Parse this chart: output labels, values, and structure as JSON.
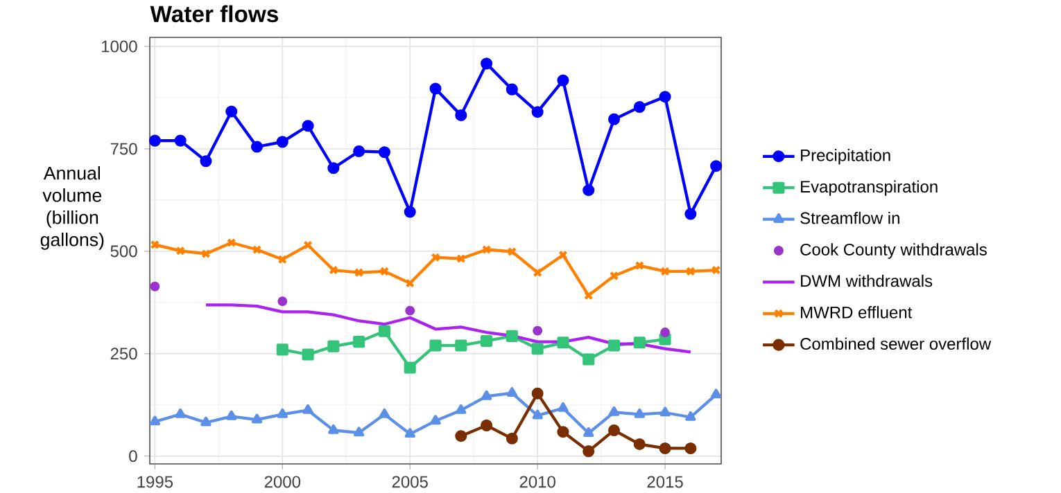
{
  "chart_data": {
    "type": "line",
    "title": "Water flows",
    "ylabel": "Annual volume (billion gallons)",
    "xlim": [
      1994.8,
      2017.2
    ],
    "xticks": [
      1995,
      2000,
      2005,
      2010,
      2015
    ],
    "ylim": [
      -19,
      1022
    ],
    "yticks": [
      0,
      250,
      500,
      750,
      1000
    ],
    "grid": true,
    "legend": "right",
    "series": [
      {
        "name": "Precipitation",
        "color": "#0000ff",
        "marker": "circle",
        "x": [
          1995,
          1996,
          1997,
          1998,
          1999,
          2000,
          2001,
          2002,
          2003,
          2004,
          2005,
          2006,
          2007,
          2008,
          2009,
          2010,
          2011,
          2012,
          2013,
          2014,
          2015,
          2016,
          2017
        ],
        "values": [
          770,
          770,
          720,
          841,
          755,
          767,
          806,
          703,
          744,
          742,
          596,
          897,
          832,
          958,
          895,
          840,
          917,
          649,
          822,
          852,
          877,
          591,
          708
        ]
      },
      {
        "name": "Evapotranspiration",
        "color": "#33c47a",
        "marker": "square",
        "x": [
          2000,
          2001,
          2002,
          2003,
          2004,
          2005,
          2006,
          2007,
          2008,
          2009,
          2010,
          2011,
          2012,
          2013,
          2014,
          2015
        ],
        "values": [
          260,
          248,
          268,
          279,
          305,
          216,
          270,
          270,
          281,
          293,
          262,
          277,
          236,
          270,
          277,
          285
        ]
      },
      {
        "name": "Streamflow in",
        "color": "#5b8fe8",
        "marker": "triangle",
        "x": [
          1995,
          1996,
          1997,
          1998,
          1999,
          2000,
          2001,
          2002,
          2003,
          2004,
          2005,
          2006,
          2007,
          2008,
          2009,
          2010,
          2011,
          2012,
          2013,
          2014,
          2015,
          2016,
          2017
        ],
        "values": [
          84,
          102,
          82,
          97,
          89,
          102,
          112,
          63,
          57,
          102,
          54,
          86,
          112,
          146,
          154,
          99,
          117,
          56,
          107,
          102,
          106,
          95,
          150
        ]
      },
      {
        "name": "Cook County withdrawals",
        "type": "scatter",
        "color": "#9933cc",
        "marker": "circle",
        "x": [
          1995,
          2000,
          2005,
          2010,
          2015
        ],
        "values": [
          414,
          378,
          355,
          306,
          302
        ]
      },
      {
        "name": "DWM  withdrawals",
        "color": "#aa22ee",
        "marker": "none",
        "x": [
          1997,
          1998,
          1999,
          2000,
          2001,
          2002,
          2003,
          2004,
          2005,
          2006,
          2007,
          2008,
          2009,
          2010,
          2011,
          2012,
          2013,
          2014,
          2015,
          2016
        ],
        "values": [
          369,
          369,
          366,
          352,
          352,
          345,
          330,
          322,
          338,
          310,
          315,
          302,
          294,
          279,
          279,
          290,
          274,
          274,
          262,
          254
        ]
      },
      {
        "name": "MWRD effluent",
        "color": "#ff8000",
        "marker": "cross",
        "x": [
          1995,
          1996,
          1997,
          1998,
          1999,
          2000,
          2001,
          2002,
          2003,
          2004,
          2005,
          2006,
          2007,
          2008,
          2009,
          2010,
          2011,
          2012,
          2013,
          2014,
          2015,
          2016,
          2017
        ],
        "values": [
          516,
          501,
          494,
          521,
          504,
          480,
          515,
          454,
          448,
          451,
          422,
          485,
          482,
          504,
          499,
          448,
          491,
          392,
          440,
          465,
          451,
          451,
          454
        ]
      },
      {
        "name": "Combined sewer overflow",
        "color": "#7a2e00",
        "marker": "circle",
        "x": [
          2007,
          2008,
          2009,
          2010,
          2011,
          2012,
          2013,
          2014,
          2015,
          2016
        ],
        "values": [
          49,
          75,
          43,
          153,
          59,
          12,
          63,
          29,
          19,
          19
        ]
      }
    ]
  }
}
